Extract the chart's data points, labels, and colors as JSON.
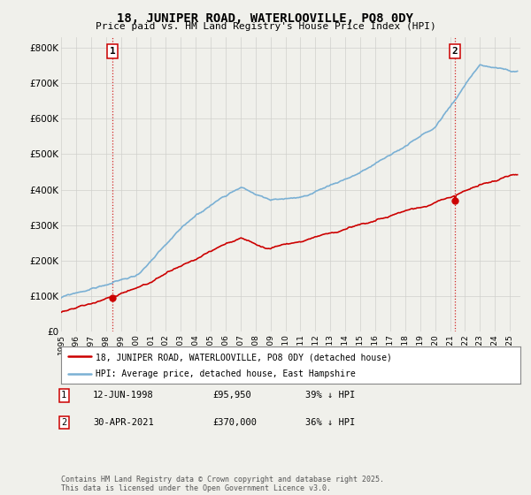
{
  "title": "18, JUNIPER ROAD, WATERLOOVILLE, PO8 0DY",
  "subtitle": "Price paid vs. HM Land Registry's House Price Index (HPI)",
  "legend_line1": "18, JUNIPER ROAD, WATERLOOVILLE, PO8 0DY (detached house)",
  "legend_line2": "HPI: Average price, detached house, East Hampshire",
  "footer": "Contains HM Land Registry data © Crown copyright and database right 2025.\nThis data is licensed under the Open Government Licence v3.0.",
  "annotation1_date": "12-JUN-1998",
  "annotation1_price": "£95,950",
  "annotation1_hpi": "39% ↓ HPI",
  "annotation2_date": "30-APR-2021",
  "annotation2_price": "£370,000",
  "annotation2_hpi": "36% ↓ HPI",
  "sale1_year": 1998.44,
  "sale1_price": 95950,
  "sale2_year": 2021.33,
  "sale2_price": 370000,
  "red_color": "#cc0000",
  "blue_color": "#7ab0d4",
  "background_color": "#f0f0eb",
  "ylim": [
    0,
    830000
  ],
  "xlim_start": 1995.0,
  "xlim_end": 2025.7,
  "yticks": [
    0,
    100000,
    200000,
    300000,
    400000,
    500000,
    600000,
    700000,
    800000
  ],
  "ytick_labels": [
    "£0",
    "£100K",
    "£200K",
    "£300K",
    "£400K",
    "£500K",
    "£600K",
    "£700K",
    "£800K"
  ]
}
